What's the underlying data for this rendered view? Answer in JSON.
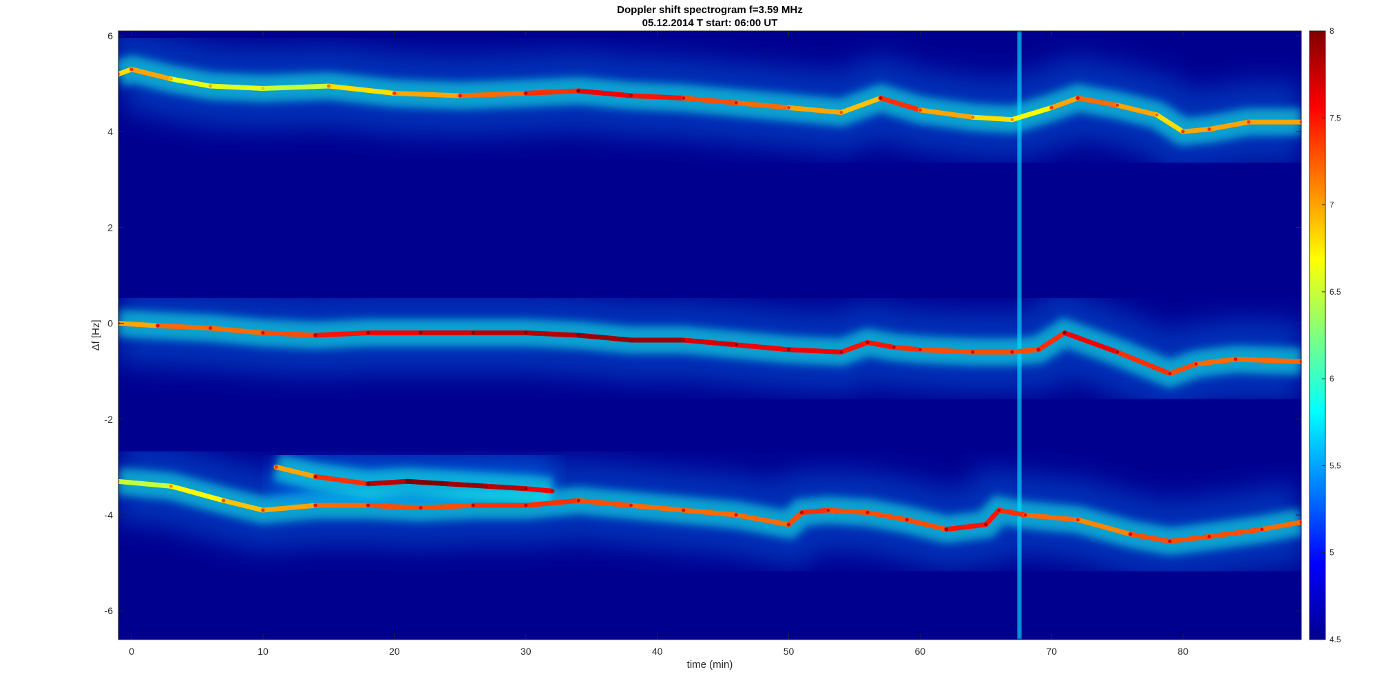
{
  "chart_data": {
    "type": "heatmap",
    "title": "Doppler shift spectrogram f=3.59 MHz",
    "subtitle": "05.12.2014   T start: 06:00 UT",
    "xlabel": "time (min)",
    "ylabel": "Δf [Hz]",
    "xlim": [
      -1,
      89
    ],
    "ylim": [
      -6.6,
      6.1
    ],
    "x_ticks": [
      0,
      10,
      20,
      30,
      40,
      50,
      60,
      70,
      80
    ],
    "y_ticks": [
      -6,
      -4,
      -2,
      0,
      2,
      4,
      6
    ],
    "colormap": "jet",
    "colorbar": {
      "min": 4.5,
      "max": 8,
      "ticks": [
        4.5,
        5,
        5.5,
        6,
        6.5,
        7,
        7.5,
        8
      ]
    },
    "grid": false,
    "background_color": "#00008f",
    "series": [
      {
        "x": [
          -1,
          0,
          3,
          6,
          10,
          15,
          20,
          25,
          30,
          34,
          38,
          42,
          46,
          50,
          54,
          57,
          60,
          64,
          67,
          70,
          72,
          75,
          78,
          80,
          82,
          85,
          89
        ],
        "y": [
          5.2,
          5.3,
          5.1,
          4.95,
          4.9,
          4.95,
          4.8,
          4.75,
          4.8,
          4.85,
          4.75,
          4.7,
          4.6,
          4.5,
          4.4,
          4.7,
          4.45,
          4.3,
          4.25,
          4.5,
          4.7,
          4.55,
          4.35,
          4.0,
          4.05,
          4.2,
          4.2
        ],
        "intensity": [
          6.8,
          7.0,
          6.6,
          6.6,
          6.5,
          6.8,
          7.0,
          7.2,
          7.4,
          7.6,
          7.5,
          7.3,
          7.2,
          7.0,
          6.9,
          7.4,
          7.0,
          6.8,
          6.7,
          7.0,
          7.2,
          7.0,
          6.8,
          7.0,
          7.0,
          7.0,
          6.9
        ]
      },
      {
        "x": [
          -1,
          2,
          6,
          10,
          14,
          18,
          22,
          26,
          30,
          34,
          38,
          42,
          46,
          50,
          54,
          56,
          58,
          60,
          64,
          67,
          69,
          71,
          75,
          79,
          81,
          84,
          89
        ],
        "y": [
          0.0,
          -0.05,
          -0.1,
          -0.2,
          -0.25,
          -0.2,
          -0.2,
          -0.2,
          -0.2,
          -0.25,
          -0.35,
          -0.35,
          -0.45,
          -0.55,
          -0.6,
          -0.4,
          -0.5,
          -0.55,
          -0.6,
          -0.6,
          -0.55,
          -0.2,
          -0.6,
          -1.05,
          -0.85,
          -0.75,
          -0.8
        ],
        "intensity": [
          7.0,
          7.2,
          7.2,
          7.3,
          7.5,
          7.6,
          7.7,
          7.8,
          7.8,
          7.9,
          7.9,
          7.7,
          7.6,
          7.6,
          7.5,
          7.5,
          7.4,
          7.3,
          7.3,
          7.3,
          7.4,
          7.6,
          7.4,
          7.3,
          7.2,
          7.2,
          7.1
        ]
      },
      {
        "x": [
          -1,
          3,
          7,
          10,
          14,
          18,
          22,
          26,
          30,
          34,
          38,
          42,
          46,
          50,
          51,
          53,
          56,
          59,
          62,
          65,
          66,
          68,
          72,
          76,
          79,
          82,
          86,
          89
        ],
        "y": [
          -3.3,
          -3.4,
          -3.7,
          -3.9,
          -3.8,
          -3.8,
          -3.85,
          -3.8,
          -3.8,
          -3.7,
          -3.8,
          -3.9,
          -4.0,
          -4.2,
          -3.95,
          -3.9,
          -3.95,
          -4.1,
          -4.3,
          -4.2,
          -3.9,
          -4.0,
          -4.1,
          -4.4,
          -4.55,
          -4.45,
          -4.3,
          -4.15
        ],
        "intensity": [
          6.5,
          6.7,
          6.9,
          7.0,
          7.2,
          7.3,
          7.3,
          7.4,
          7.4,
          7.3,
          7.2,
          7.2,
          7.2,
          7.3,
          7.4,
          7.3,
          7.3,
          7.3,
          7.5,
          7.5,
          7.4,
          7.2,
          7.1,
          7.3,
          7.3,
          7.3,
          7.2,
          7.1
        ]
      },
      {
        "x": [
          11,
          14,
          18,
          21,
          24,
          27,
          30,
          32
        ],
        "y": [
          -3.0,
          -3.2,
          -3.35,
          -3.3,
          -3.35,
          -3.4,
          -3.45,
          -3.5
        ],
        "intensity": [
          7.0,
          7.4,
          7.8,
          8.0,
          7.9,
          7.8,
          7.6,
          7.4
        ]
      }
    ],
    "annotations": [
      "vertical broadband interference at t ≈ 67.5 min"
    ]
  }
}
